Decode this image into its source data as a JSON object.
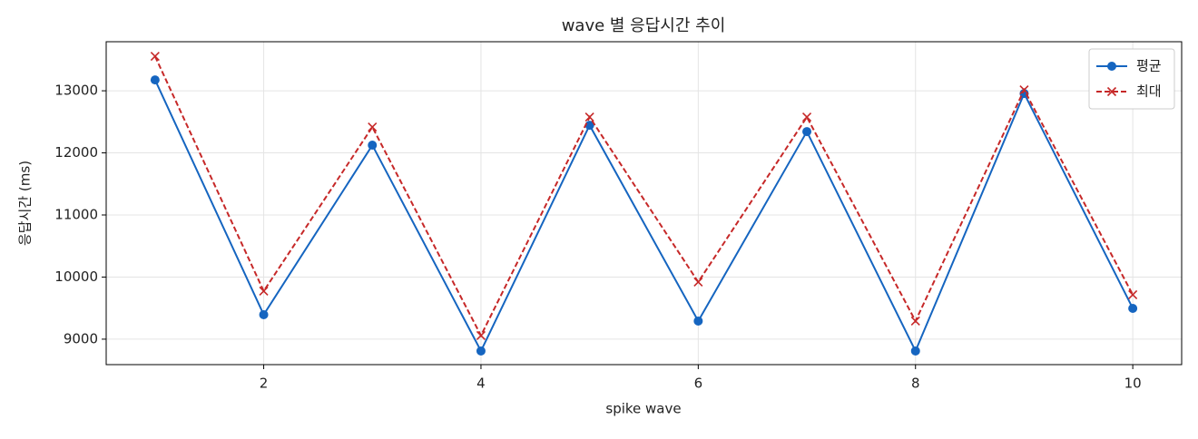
{
  "chart_data": {
    "type": "line",
    "title": "wave 별 응답시간 추이",
    "x_label": "spike wave",
    "y_label": "응답시간 (ms)",
    "x": [
      1,
      2,
      3,
      4,
      5,
      6,
      7,
      8,
      9,
      10
    ],
    "series": [
      {
        "name": "평균",
        "color": "#1565c0",
        "marker": "o",
        "dash": "solid",
        "values": [
          13175,
          9394,
          12124,
          8810,
          12445,
          9292,
          12343,
          8810,
          12956,
          9496
        ]
      },
      {
        "name": "최대",
        "color": "#c62828",
        "marker": "x",
        "dash": "dashed",
        "values": [
          13555,
          9774,
          12416,
          9058,
          12577,
          9920,
          12577,
          9292,
          13015,
          9715
        ]
      }
    ],
    "xlim": [
      0.55,
      10.45
    ],
    "ylim": [
      8590,
      13790
    ],
    "xticks": [
      2,
      4,
      6,
      8,
      10
    ],
    "yticks": [
      9000,
      10000,
      11000,
      12000,
      13000
    ],
    "grid": true,
    "legend": "upper right"
  }
}
